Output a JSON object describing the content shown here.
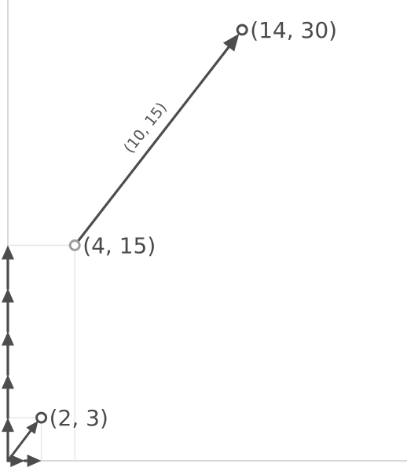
{
  "points": [
    {
      "x": 2,
      "y": 3,
      "label": "(2, 3)",
      "marker": "dark-circle"
    },
    {
      "x": 4,
      "y": 15,
      "label": "(4, 15)",
      "marker": "light-circle"
    },
    {
      "x": 14,
      "y": 30,
      "label": "(14, 30)",
      "marker": "dark-circle"
    }
  ],
  "vectors": [
    {
      "from": [
        4,
        15
      ],
      "to": [
        14,
        30
      ],
      "label": "(10, 15)"
    }
  ],
  "unit_arrows": {
    "x_count": 2,
    "y_count": 5
  },
  "small_vector": {
    "from": [
      0,
      0
    ],
    "to": [
      2,
      3
    ]
  },
  "guides": [
    {
      "corner": [
        2,
        3
      ]
    },
    {
      "corner": [
        4,
        15
      ]
    }
  ],
  "colors": {
    "axis": "#d8d8d8",
    "guide": "#e6e6e6",
    "arrow": "#4d4d4d",
    "light_point": "#9e9e9e"
  }
}
